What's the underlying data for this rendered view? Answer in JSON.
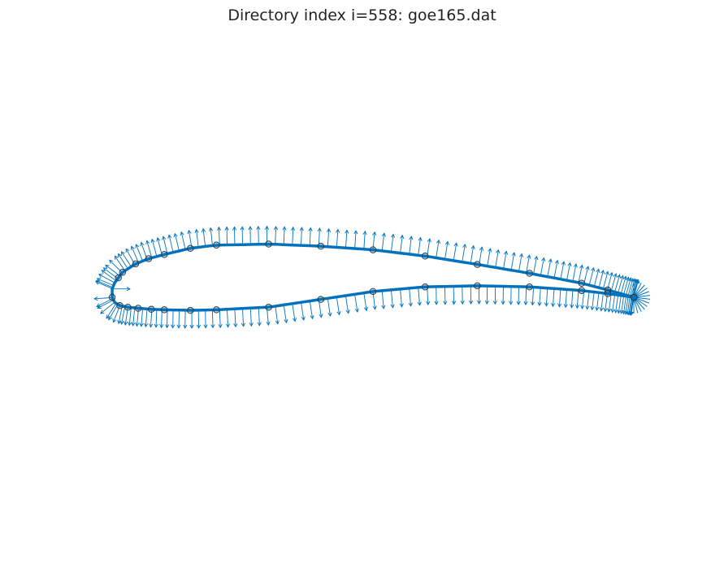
{
  "figure": {
    "title": "Directory index i=558: goe165.dat"
  },
  "colors": {
    "curve": "#0072BD",
    "normals": "#0072BD",
    "control_point_edge": "#333333",
    "control_point_fill": "#0072BD"
  },
  "chart_data": {
    "type": "scatter",
    "description_of_marks": "airfoil outline with outward normal vectors and circled control points",
    "airfoil_name": "goe165.dat",
    "directory_index": 558,
    "axes_visible": false,
    "x_range": [
      -0.02,
      1.02
    ],
    "y_range": [
      -0.48,
      0.52
    ],
    "upper_surface": {
      "x": [
        0.0,
        0.005,
        0.02,
        0.045,
        0.07,
        0.1,
        0.15,
        0.2,
        0.3,
        0.4,
        0.5,
        0.6,
        0.7,
        0.8,
        0.9,
        0.95,
        1.0
      ],
      "y": [
        0.016,
        0.028,
        0.048,
        0.064,
        0.074,
        0.082,
        0.094,
        0.1,
        0.102,
        0.098,
        0.091,
        0.079,
        0.063,
        0.046,
        0.027,
        0.014,
        0.0
      ]
    },
    "lower_surface": {
      "x": [
        0.0,
        0.005,
        0.015,
        0.03,
        0.05,
        0.075,
        0.1,
        0.15,
        0.2,
        0.3,
        0.4,
        0.5,
        0.6,
        0.7,
        0.8,
        0.9,
        0.95,
        1.0
      ],
      "y": [
        0.0,
        -0.01,
        -0.016,
        -0.019,
        -0.021,
        -0.023,
        -0.024,
        -0.025,
        -0.024,
        -0.019,
        -0.004,
        0.011,
        0.02,
        0.022,
        0.02,
        0.013,
        0.007,
        0.0
      ]
    },
    "control_points": {
      "upper_x": [
        0.012,
        0.02,
        0.045,
        0.07,
        0.1,
        0.15,
        0.2,
        0.3,
        0.4,
        0.5,
        0.6,
        0.7,
        0.8,
        0.9,
        0.95,
        1.0
      ],
      "lower_x": [
        0.0,
        0.015,
        0.03,
        0.05,
        0.075,
        0.1,
        0.15,
        0.2,
        0.3,
        0.4,
        0.5,
        0.6,
        0.7,
        0.8,
        0.9,
        0.95,
        1.0
      ]
    }
  }
}
